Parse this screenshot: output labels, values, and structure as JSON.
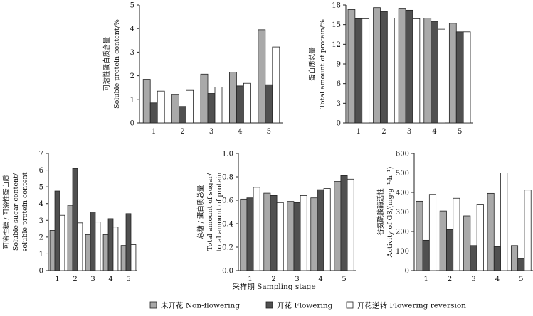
{
  "colors": {
    "non_flowering": "#a9a9a9",
    "flowering": "#505050",
    "flowering_reversion": "#ffffff",
    "axis": "#222222"
  },
  "x_title": "采样期 Sampling stage",
  "legend": [
    {
      "label": "未开花 Non-flowering",
      "color": "#a9a9a9"
    },
    {
      "label": "开花 Flowering",
      "color": "#505050"
    },
    {
      "label": "开花逆转 Flowering reversion",
      "color": "#ffffff"
    }
  ],
  "chart_data": [
    {
      "type": "bar",
      "position": "top-left",
      "categories": [
        "1",
        "2",
        "3",
        "4",
        "5"
      ],
      "ylabel": [
        "可溶性蛋白质含量",
        "Soluble protein content/%"
      ],
      "ylim": [
        0,
        5
      ],
      "yticks": [
        "0",
        "1",
        "2",
        "3",
        "4",
        "5"
      ],
      "series": [
        {
          "name": "未开花 Non-flowering",
          "values": [
            1.85,
            1.2,
            2.07,
            2.15,
            3.95
          ]
        },
        {
          "name": "开花 Flowering",
          "values": [
            0.85,
            0.7,
            1.25,
            1.57,
            1.62
          ]
        },
        {
          "name": "开花逆转 Flowering reversion",
          "values": [
            1.35,
            1.38,
            1.52,
            1.68,
            3.22
          ]
        }
      ]
    },
    {
      "type": "bar",
      "position": "top-right",
      "categories": [
        "1",
        "2",
        "3",
        "4",
        "5"
      ],
      "ylabel": [
        "蛋白质总量",
        "Total amount of protein/%"
      ],
      "ylim": [
        0,
        18
      ],
      "yticks": [
        "0",
        "3",
        "6",
        "9",
        "12",
        "15",
        "18"
      ],
      "series": [
        {
          "name": "未开花 Non-flowering",
          "values": [
            17.3,
            17.6,
            17.5,
            16.0,
            15.2
          ]
        },
        {
          "name": "开花 Flowering",
          "values": [
            15.9,
            17.0,
            17.2,
            15.5,
            13.9
          ]
        },
        {
          "name": "开花逆转 Flowering reversion",
          "values": [
            15.9,
            16.0,
            15.9,
            14.3,
            13.9
          ]
        }
      ]
    },
    {
      "type": "bar",
      "position": "bottom-left",
      "categories": [
        "1",
        "2",
        "3",
        "4",
        "5"
      ],
      "ylabel": [
        "可溶性糖 / 可溶性蛋白质",
        "Soluble sugar content/",
        "soluble protein content"
      ],
      "ylim": [
        0,
        7
      ],
      "yticks": [
        "0",
        "1",
        "2",
        "3",
        "4",
        "5",
        "6",
        "7"
      ],
      "series": [
        {
          "name": "未开花 Non-flowering",
          "values": [
            2.4,
            3.9,
            2.15,
            2.15,
            1.5
          ]
        },
        {
          "name": "开花 Flowering",
          "values": [
            4.75,
            6.1,
            3.5,
            3.1,
            3.4
          ]
        },
        {
          "name": "开花逆转 Flowering reversion",
          "values": [
            3.3,
            2.85,
            2.9,
            2.6,
            1.55
          ]
        }
      ]
    },
    {
      "type": "bar",
      "position": "bottom-center",
      "categories": [
        "1",
        "2",
        "3",
        "4",
        "5"
      ],
      "ylabel": [
        "总糖 / 蛋白质总量",
        "Total amount of sugar/",
        "total amount of protein"
      ],
      "ylim": [
        0,
        1
      ],
      "yticks": [
        "0.0",
        "0.2",
        "0.4",
        "0.6",
        "0.8",
        "1.0"
      ],
      "series": [
        {
          "name": "未开花 Non-flowering",
          "values": [
            0.61,
            0.66,
            0.59,
            0.62,
            0.76
          ]
        },
        {
          "name": "开花 Flowering",
          "values": [
            0.62,
            0.64,
            0.58,
            0.69,
            0.81
          ]
        },
        {
          "name": "开花逆转 Flowering reversion",
          "values": [
            0.71,
            0.58,
            0.64,
            0.7,
            0.78
          ]
        }
      ]
    },
    {
      "type": "bar",
      "position": "bottom-right",
      "categories": [
        "1",
        "2",
        "3",
        "4",
        "5"
      ],
      "ylabel": [
        "谷氨酰胺酶活性",
        "Activity of GS/(mg·g⁻¹·h⁻¹)"
      ],
      "ylim": [
        0,
        600
      ],
      "yticks": [
        "0",
        "100",
        "200",
        "300",
        "400",
        "500",
        "600"
      ],
      "series": [
        {
          "name": "未开花 Non-flowering",
          "values": [
            355,
            305,
            280,
            395,
            128
          ]
        },
        {
          "name": "开花 Flowering",
          "values": [
            155,
            210,
            128,
            122,
            60
          ]
        },
        {
          "name": "开花逆转 Flowering reversion",
          "values": [
            390,
            370,
            340,
            500,
            412
          ]
        }
      ]
    }
  ]
}
